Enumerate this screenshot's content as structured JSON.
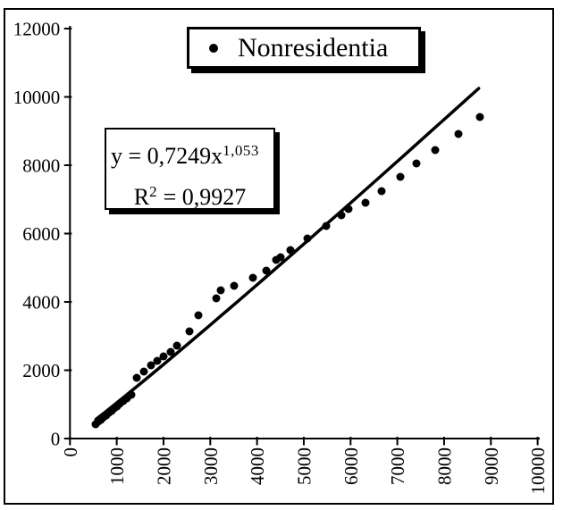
{
  "legend": {
    "label": "Nonresidentia"
  },
  "equation_box": {
    "line1_base": "y = 0,7249x",
    "line1_sup": "1,053",
    "line2_base": "R",
    "line2_sup": "2",
    "line2_rest": " = 0,9927"
  },
  "chart_data": {
    "type": "scatter",
    "legend_entries": [
      "Nonresidentia"
    ],
    "legend_position": "top",
    "grid": false,
    "annotations": [
      "y = 0,7249x^1,053",
      "R^2 = 0,9927"
    ],
    "x_axis": {
      "min": 0,
      "max": 10000,
      "tick_step": 1000,
      "label_rotation": -90,
      "ticks": [
        {
          "value": 0,
          "label": "0"
        },
        {
          "value": 1000,
          "label": "1000"
        },
        {
          "value": 2000,
          "label": "2000"
        },
        {
          "value": 3000,
          "label": "3000"
        },
        {
          "value": 4000,
          "label": "4000"
        },
        {
          "value": 5000,
          "label": "5000"
        },
        {
          "value": 6000,
          "label": "6000"
        },
        {
          "value": 7000,
          "label": "7000"
        },
        {
          "value": 8000,
          "label": "8000"
        },
        {
          "value": 9000,
          "label": "9000"
        },
        {
          "value": 10000,
          "label": "10000"
        }
      ]
    },
    "y_axis": {
      "min": 0,
      "max": 12000,
      "tick_step": 2000,
      "ticks": [
        {
          "value": 0,
          "label": "0"
        },
        {
          "value": 2000,
          "label": "2000"
        },
        {
          "value": 4000,
          "label": "4000"
        },
        {
          "value": 6000,
          "label": "6000"
        },
        {
          "value": 8000,
          "label": "8000"
        },
        {
          "value": 10000,
          "label": "10000"
        },
        {
          "value": 12000,
          "label": "12000"
        }
      ]
    },
    "series": [
      {
        "name": "Nonresidentia",
        "marker": "filled-circle",
        "points": [
          [
            549,
            418
          ],
          [
            606,
            497
          ],
          [
            663,
            549
          ],
          [
            720,
            627
          ],
          [
            778,
            680
          ],
          [
            835,
            758
          ],
          [
            892,
            811
          ],
          [
            950,
            889
          ],
          [
            1007,
            941
          ],
          [
            1064,
            1020
          ],
          [
            1141,
            1098
          ],
          [
            1217,
            1176
          ],
          [
            1313,
            1281
          ],
          [
            1427,
            1777
          ],
          [
            1580,
            1961
          ],
          [
            1733,
            2144
          ],
          [
            1867,
            2275
          ],
          [
            2001,
            2406
          ],
          [
            2154,
            2536
          ],
          [
            2287,
            2719
          ],
          [
            2555,
            3137
          ],
          [
            2746,
            3608
          ],
          [
            3128,
            4105
          ],
          [
            3224,
            4340
          ],
          [
            3510,
            4471
          ],
          [
            3912,
            4706
          ],
          [
            4198,
            4915
          ],
          [
            4409,
            5229
          ],
          [
            4504,
            5307
          ],
          [
            4714,
            5516
          ],
          [
            5077,
            5856
          ],
          [
            5479,
            6222
          ],
          [
            5803,
            6536
          ],
          [
            5956,
            6719
          ],
          [
            6319,
            6902
          ],
          [
            6663,
            7242
          ],
          [
            7064,
            7660
          ],
          [
            7408,
            8052
          ],
          [
            7810,
            8444
          ],
          [
            8307,
            8915
          ],
          [
            8765,
            9412
          ]
        ]
      }
    ],
    "trendline": {
      "form": "power",
      "coefficient": 0.7249,
      "exponent": 1.053,
      "r_squared": 0.9927,
      "x_start": 555,
      "x_end": 8740
    },
    "colors": {
      "marker": "#000000",
      "trendline": "#000000",
      "axis": "#000000",
      "background": "#ffffff"
    }
  }
}
